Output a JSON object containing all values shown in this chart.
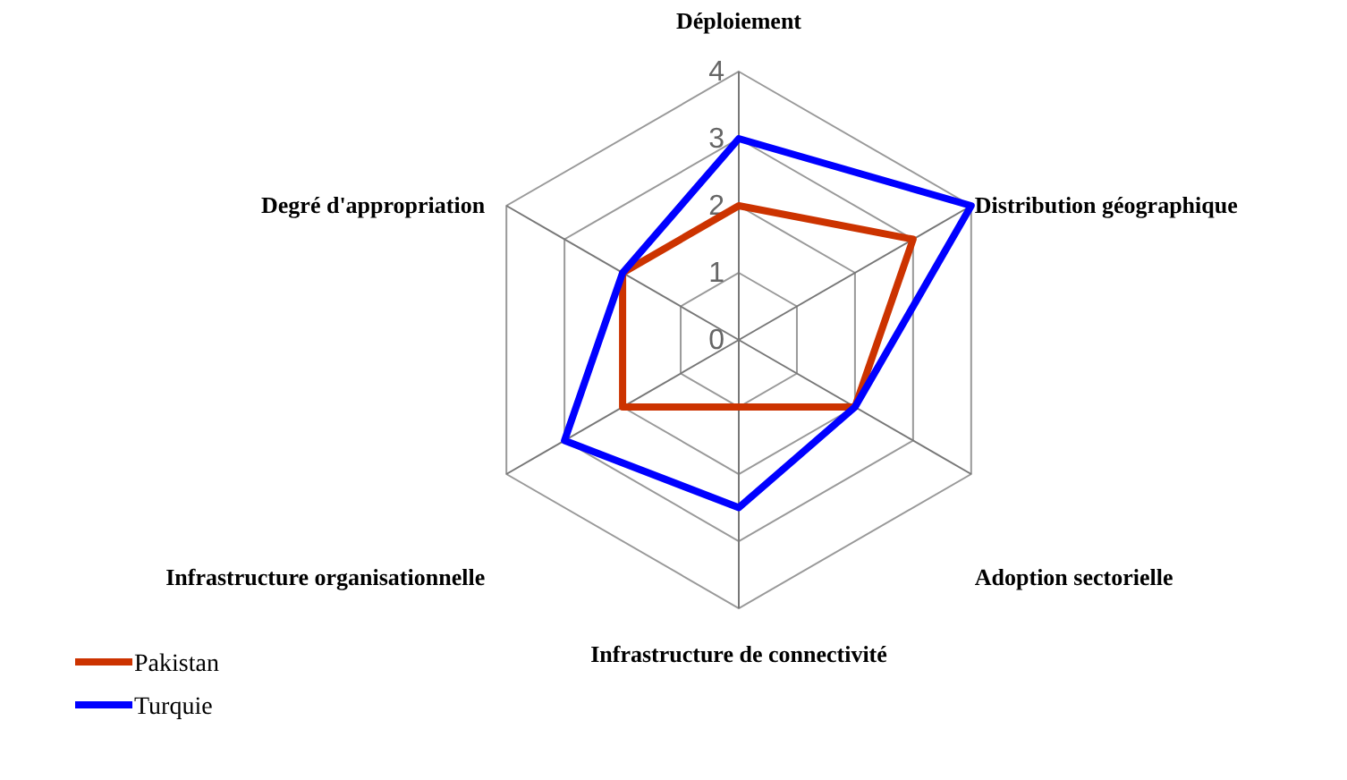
{
  "chart_data": {
    "type": "radar",
    "categories": [
      "Déploiement",
      "Distribution géographique",
      "Adoption sectorielle",
      "Infrastructure de connectivité",
      "Infrastructure organisationnelle",
      "Degré d'appropriation"
    ],
    "series": [
      {
        "name": "Pakistan",
        "color": "#cc3300",
        "values": [
          2,
          3,
          2,
          1,
          2,
          2
        ]
      },
      {
        "name": "Turquie",
        "color": "#0000ff",
        "values": [
          3,
          4,
          2,
          2.5,
          3,
          2
        ]
      }
    ],
    "ylim": [
      0,
      4
    ],
    "yticks": [
      0,
      1,
      2,
      3,
      4
    ],
    "grid": true,
    "legend": "bottom left",
    "marker": "none",
    "line_style": "solid"
  }
}
